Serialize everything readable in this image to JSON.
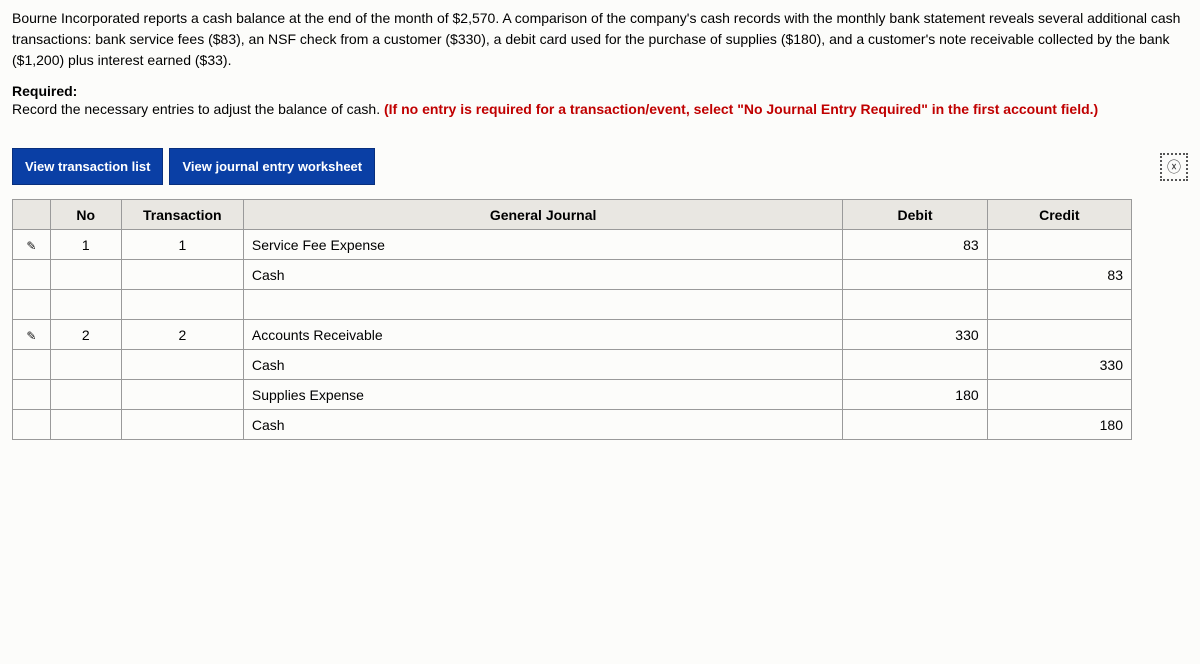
{
  "problem": {
    "description": "Bourne Incorporated reports a cash balance at the end of the month of $2,570. A comparison of the company's cash records with the monthly bank statement reveals several additional cash transactions: bank service fees ($83), an NSF check from a customer ($330), a debit card used for the purchase of supplies ($180), and a customer's note receivable collected by the bank ($1,200) plus interest earned ($33).",
    "required_label": "Required:",
    "required_text_plain": "Record the necessary entries to adjust the balance of cash. ",
    "required_text_red": "(If no entry is required for a transaction/event, select \"No Journal Entry Required\" in the first account field.)"
  },
  "tabs": {
    "list": "View transaction list",
    "worksheet": "View journal entry worksheet"
  },
  "close_symbol": "ⓧ",
  "headers": {
    "no": "No",
    "txn": "Transaction",
    "gj": "General Journal",
    "debit": "Debit",
    "credit": "Credit"
  },
  "rows": [
    {
      "edit": true,
      "no": "1",
      "txn": "1",
      "account": "Service Fee Expense",
      "indent": false,
      "debit": "83",
      "credit": ""
    },
    {
      "edit": false,
      "no": "",
      "txn": "",
      "account": "Cash",
      "indent": true,
      "debit": "",
      "credit": "83"
    },
    {
      "spacer": true
    },
    {
      "edit": true,
      "no": "2",
      "txn": "2",
      "account": "Accounts Receivable",
      "indent": false,
      "debit": "330",
      "credit": ""
    },
    {
      "edit": false,
      "no": "",
      "txn": "",
      "account": "Cash",
      "indent": true,
      "debit": "",
      "credit": "330"
    },
    {
      "edit": false,
      "no": "",
      "txn": "",
      "account": "Supplies Expense",
      "indent": false,
      "debit": "180",
      "credit": ""
    },
    {
      "edit": false,
      "no": "",
      "txn": "",
      "account": "Cash",
      "indent": true,
      "debit": "",
      "credit": "180"
    }
  ],
  "colors": {
    "tab_bg": "#0a3fa5",
    "red_text": "#c00000",
    "header_bg": "#e9e7e2",
    "border": "#9a9a9a"
  },
  "pencil_glyph": "✎"
}
